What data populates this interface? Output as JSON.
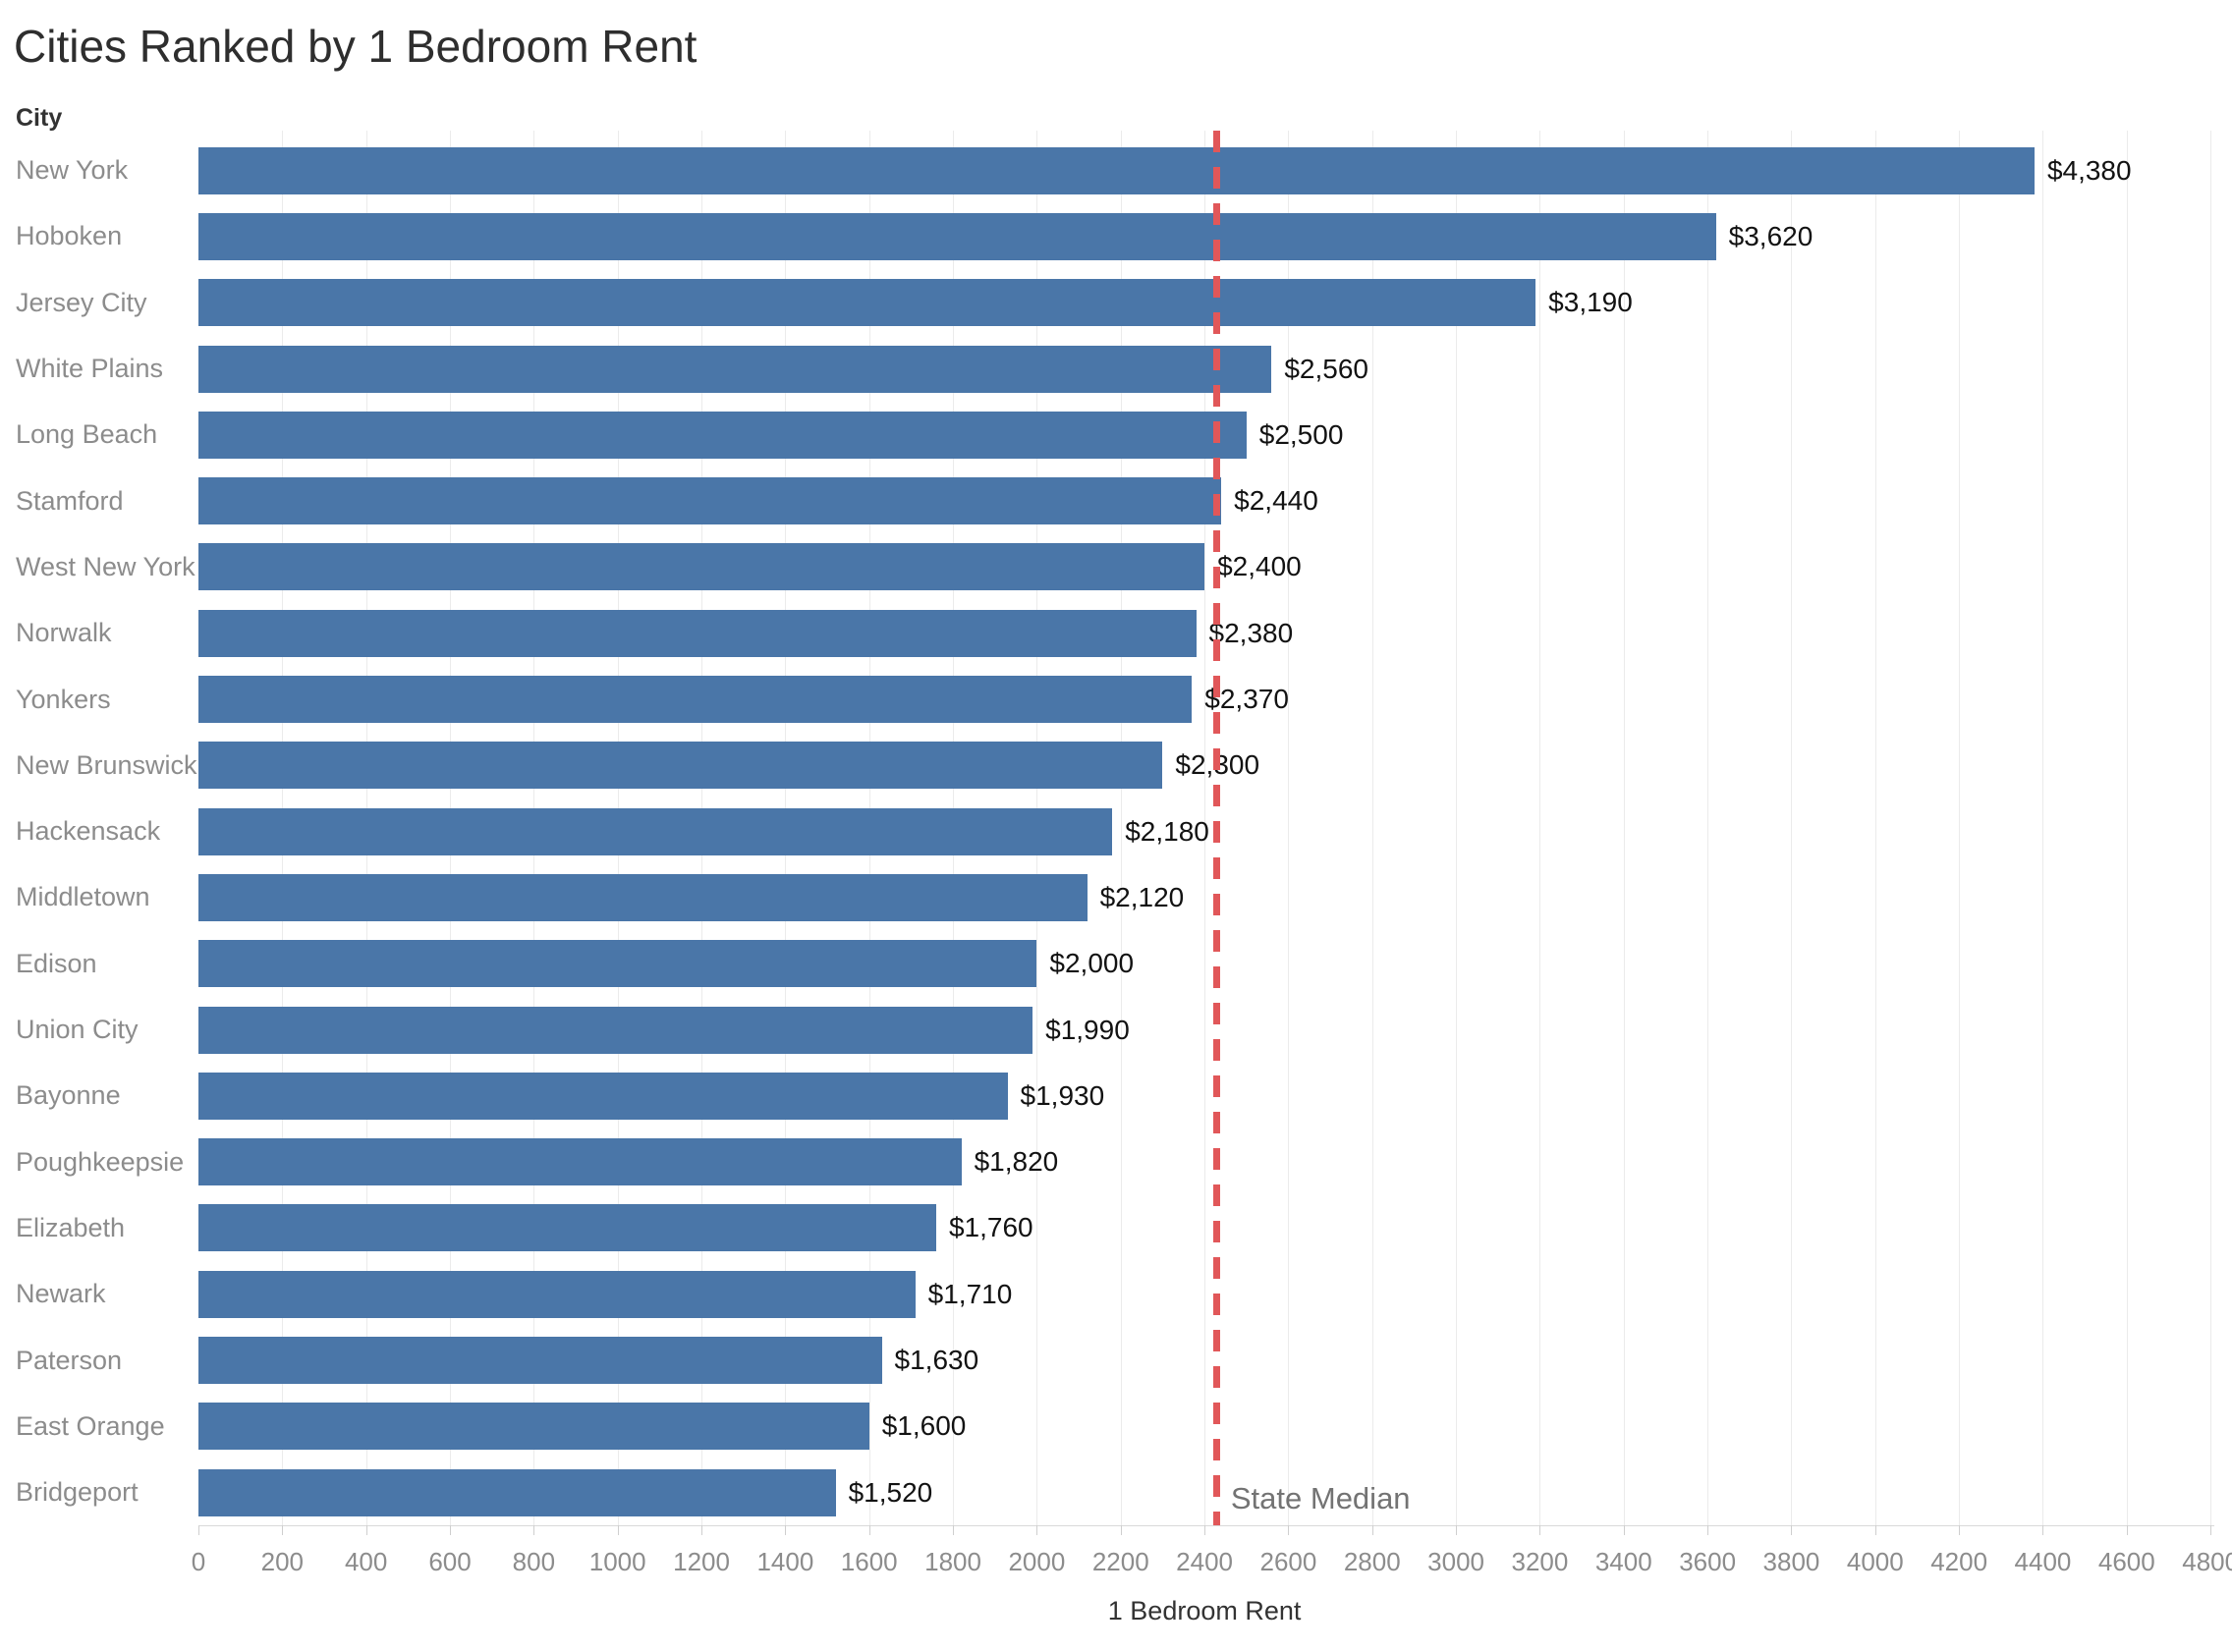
{
  "title": "Cities Ranked by 1 Bedroom Rent",
  "column_header": "City",
  "axis": {
    "label": "1 Bedroom Rent",
    "min": 0,
    "max": 4800,
    "tick_step": 200
  },
  "reference_line": {
    "label": "State Median",
    "value": 2430,
    "color": "#e15759",
    "style": "dashed"
  },
  "bar_color": "#4a76a8",
  "chart_data": {
    "type": "bar",
    "orientation": "horizontal",
    "title": "Cities Ranked by 1 Bedroom Rent",
    "xlabel": "1 Bedroom Rent",
    "ylabel": "City",
    "xlim": [
      0,
      4800
    ],
    "grid": true,
    "categories": [
      "New York",
      "Hoboken",
      "Jersey City",
      "White Plains",
      "Long Beach",
      "Stamford",
      "West New York",
      "Norwalk",
      "Yonkers",
      "New Brunswick",
      "Hackensack",
      "Middletown",
      "Edison",
      "Union City",
      "Bayonne",
      "Poughkeepsie",
      "Elizabeth",
      "Newark",
      "Paterson",
      "East Orange",
      "Bridgeport"
    ],
    "values": [
      4380,
      3620,
      3190,
      2560,
      2500,
      2440,
      2400,
      2380,
      2370,
      2300,
      2180,
      2120,
      2000,
      1990,
      1930,
      1820,
      1760,
      1710,
      1630,
      1600,
      1520
    ],
    "value_labels": [
      "$4,380",
      "$3,620",
      "$3,190",
      "$2,560",
      "$2,500",
      "$2,440",
      "$2,400",
      "$2,380",
      "$2,370",
      "$2,300",
      "$2,180",
      "$2,120",
      "$2,000",
      "$1,990",
      "$1,930",
      "$1,820",
      "$1,760",
      "$1,710",
      "$1,630",
      "$1,600",
      "$1,520"
    ],
    "reference_line": {
      "label": "State Median",
      "value": 2430
    }
  }
}
